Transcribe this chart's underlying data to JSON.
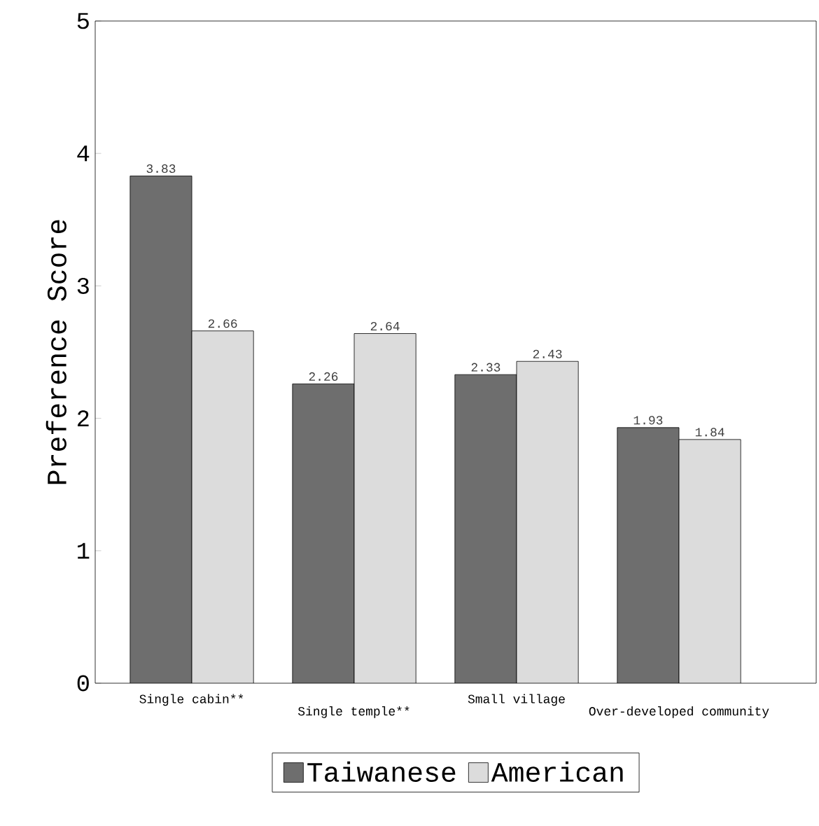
{
  "chart_data": {
    "type": "bar",
    "ylabel": "Preference Score",
    "categories": [
      "Single cabin**",
      "Single temple**",
      "Small village",
      "Over-developed community"
    ],
    "series": [
      {
        "name": "Taiwanese",
        "color": "#6e6e6e",
        "values": [
          3.83,
          2.26,
          2.33,
          1.93
        ]
      },
      {
        "name": "American",
        "color": "#dcdcdc",
        "values": [
          2.66,
          2.64,
          2.43,
          1.84
        ]
      }
    ],
    "ylim": [
      0,
      5
    ],
    "yticks": [
      0,
      1,
      2,
      3,
      4,
      5
    ],
    "data_labels": true,
    "legend": "bottom"
  }
}
